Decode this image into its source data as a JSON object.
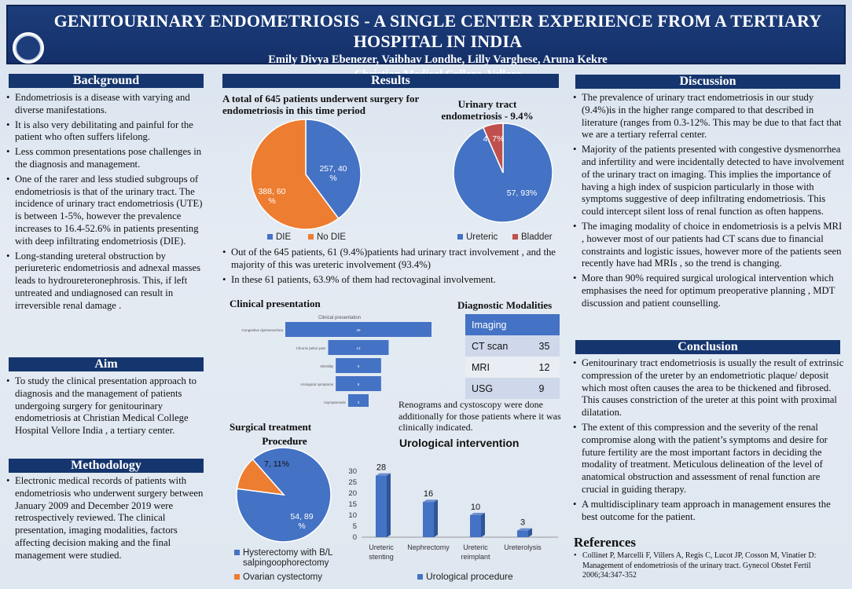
{
  "header": {
    "title": "GENITOURINARY ENDOMETRIOSIS - A SINGLE CENTER EXPERIENCE FROM A TERTIARY HOSPITAL IN INDIA",
    "authors": "Emily Divya Ebenezer, Vaibhav Londhe, Lilly Varghese, Aruna Kekre",
    "institution": "Christian Medical College, Vellore"
  },
  "background": {
    "heading": "Background",
    "bullets": [
      "Endometriosis is a disease with varying and diverse manifestations.",
      "It is also very debilitating and painful for the patient who often suffers lifelong.",
      "Less common presentations pose challenges in the  diagnosis and management.",
      "One of the rarer and less studied subgroups of endometriosis is that of the urinary tract. The incidence of urinary tract endometriosis (UTE) is between 1-5%, however the prevalence increases to 16.4-52.6% in patients presenting with deep infiltrating endometriosis (DIE).",
      "Long-standing ureteral obstruction by periureteric endometriosis and adnexal masses leads to hydroureteronephrosis. This, if left untreated and undiagnosed can result in irreversible renal damage ."
    ]
  },
  "aim": {
    "heading": "Aim",
    "bullets": [
      "To study the clinical presentation approach to diagnosis and the management of patients undergoing surgery for genitourinary endometriosis at Christian Medical College Hospital Vellore India , a tertiary center."
    ]
  },
  "methodology": {
    "heading": "Methodology",
    "bullets": [
      "Electronic medical records of patients with endometriosis who underwent surgery between January 2009 and December 2019 were retrospectively reviewed. The clinical presentation, imaging modalities, factors affecting decision making and the final management were studied."
    ]
  },
  "results": {
    "heading": "Results",
    "pie1_title": "A total of 645 patients underwent surgery for endometriosis in this time period",
    "pie2_title": "Urinary tract endometriosis - 9.4%",
    "bullets": [
      "Out of the 645 patients, 61 (9.4%)patients had urinary tract involvement , and the majority of this was ureteric involvement (93.4%)",
      "In these 61 patients, 63.9% of them had rectovaginal involvement."
    ],
    "clinical_title": "Clinical presentation",
    "diagnostic_title": "Diagnostic Modalities",
    "diagnostic_note": "Renograms and cystoscopy were done additionally for those patients where it was clinically indicated.",
    "surgical_title": "Surgical treatment",
    "urological_title": "Urological intervention"
  },
  "diagnostic_table": {
    "header": [
      "Imaging",
      ""
    ],
    "rows": [
      [
        "CT scan",
        "35"
      ],
      [
        "MRI",
        "12"
      ],
      [
        "USG",
        "9"
      ]
    ]
  },
  "discussion": {
    "heading": "Discussion",
    "bullets": [
      "The prevalence of urinary tract endometriosis in our study (9.4%)is in the higher range compared to that described in literature (ranges from 0.3-12%. This may be due to that fact that we are a tertiary referral center.",
      "Majority of the patients presented with congestive dysmenorrhea and infertility and were incidentally detected to have involvement of the urinary tract on imaging. This implies the importance of having a high index of suspicion particularly in those with symptoms suggestive of deep infiltrating endometriosis. This could intercept silent loss of renal function as often happens.",
      "The imaging modality of choice in endometriosis is a pelvis MRI , however most of our patients had CT scans due to financial constraints and logistic issues, however more of the patients seen recently have had MRIs , so the trend is changing.",
      "More than 90% required surgical urological intervention which emphasises the need for optimum preoperative planning , MDT discussion and patient counselling."
    ]
  },
  "conclusion": {
    "heading": "Conclusion",
    "bullets": [
      "Genitourinary tract endometriosis is usually the result of extrinsic compression of the ureter by an endometriotic plaque/ deposit which most often causes the area to be thickened and fibrosed. This causes constriction of the ureter at this point with proximal dilatation.",
      "The extent of this compression and the severity of the renal compromise along with the patient’s symptoms and desire for future fertility are the most important factors in deciding the modality of treatment. Meticulous delineation of the level of anatomical obstruction and assessment of renal function are crucial in guiding therapy.",
      "A multidisciplinary team approach in management ensures the best outcome for the patient."
    ]
  },
  "references": {
    "heading": "References",
    "items": [
      "Collinet P, Marcelli F, Villers A, Regis C, Lucot JP, Cosson M, Vinatier D: Management of endometriosis of the urinary tract. Gynecol Obstet Fertil 2006;34:347-352"
    ]
  },
  "colors": {
    "banner": "#15356e",
    "pie_blue": "#4472c4",
    "pie_orange": "#ed7d31",
    "pie_red": "#c0504d",
    "bar_blue": "#4472c4"
  },
  "chart_data": [
    {
      "type": "pie",
      "title": "",
      "slices": [
        {
          "name": "DIE",
          "value": 257,
          "label": "257, 40 %"
        },
        {
          "name": "No DIE",
          "value": 388,
          "label": "388, 60 %"
        }
      ],
      "legend": [
        "DIE",
        "No DIE"
      ],
      "legend_placement": "bottom"
    },
    {
      "type": "pie",
      "title": "Urinary tract endometriosis - 9.4%",
      "slices": [
        {
          "name": "Ureteric",
          "value": 57,
          "label": "57, 93%"
        },
        {
          "name": "Bladder",
          "value": 4,
          "label": "4, 7%"
        }
      ],
      "legend": [
        "Ureteric",
        "Bladder"
      ],
      "legend_placement": "bottom"
    },
    {
      "type": "bar",
      "title": "Clinical presentation",
      "inner_title": "Clinical presentation",
      "categories": [
        "Congestive dysmenorrhea",
        "Chronic pelvic pain",
        "Infertility",
        "Urological symptoms",
        "Asymptomatic"
      ],
      "values": [
        29,
        12,
        9,
        9,
        3
      ],
      "orientation": "horizontal-funnel"
    },
    {
      "type": "pie",
      "title": "Procedure",
      "slices": [
        {
          "name": "Hysterectomy with B/L salpingoophorectomy",
          "value": 54,
          "label": "54, 89 %"
        },
        {
          "name": "Ovarian cystectomy",
          "value": 7,
          "label": "7, 11%"
        }
      ],
      "legend": [
        "Hysterectomy with B/L salpingoophorectomy",
        "Ovarian cystectomy"
      ],
      "legend_placement": "bottom"
    },
    {
      "type": "bar",
      "title": "Urological intervention",
      "categories": [
        "Ureteric stenting",
        "Nephrectomy",
        "Ureteric reimplant",
        "Ureterolysis"
      ],
      "series": [
        {
          "name": "Urological procedure",
          "values": [
            28,
            16,
            10,
            3
          ]
        }
      ],
      "ylim": [
        0,
        30
      ],
      "yticks": [
        "0",
        "5",
        "10",
        "15",
        "20",
        "25",
        "30"
      ],
      "legend_placement": "bottom"
    }
  ]
}
